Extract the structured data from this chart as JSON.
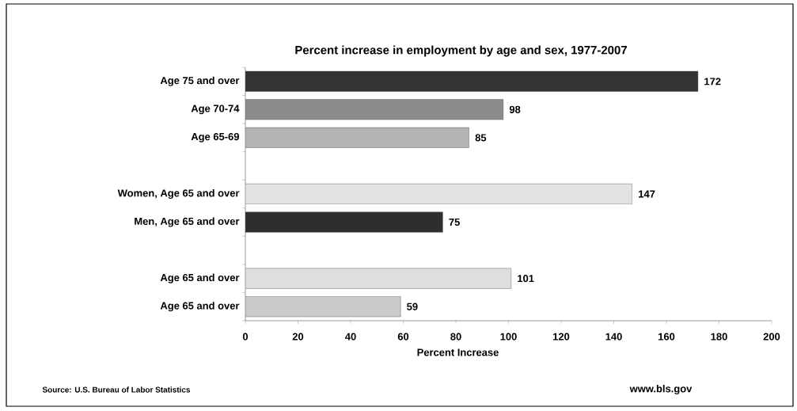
{
  "chart_data": {
    "type": "bar",
    "orientation": "horizontal",
    "title": "Percent increase in employment by age and sex, 1977-2007",
    "xlabel": "Percent Increase",
    "categories": [
      "Age 75 and over",
      "Age 70-74",
      "Age 65-69",
      null,
      "Women, Age 65 and over",
      "Men, Age 65 and over",
      null,
      "Age 65 and over",
      "Age 65 and over"
    ],
    "values": [
      172,
      98,
      85,
      null,
      147,
      75,
      null,
      101,
      59
    ],
    "colors": [
      "#333333",
      "#8c8c8c",
      "#b4b4b4",
      "#ffffff",
      "#e2e2e2",
      "#2e2e2e",
      "#ffffff",
      "#dedede",
      "#cacaca"
    ],
    "data_labels": true,
    "xlim": [
      0,
      200
    ],
    "xticks": [
      0,
      20,
      40,
      60,
      80,
      100,
      120,
      140,
      160,
      180,
      200
    ],
    "grid": false,
    "annotations": [
      "Source:  U.S. Bureau of Labor Statistics",
      "www.bls.gov"
    ]
  }
}
